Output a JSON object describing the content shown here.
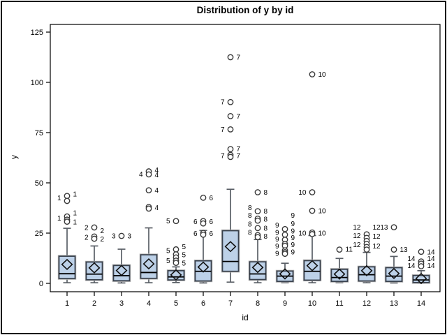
{
  "figure": {
    "title": "Distribution of y by id",
    "y_axis": {
      "label": "y",
      "ticks": [
        "0",
        "25",
        "50",
        "75",
        "100",
        "125"
      ]
    },
    "x_axis": {
      "label": "id",
      "categories": [
        "1",
        "2",
        "3",
        "4",
        "5",
        "6",
        "7",
        "8",
        "9",
        "10",
        "11",
        "12",
        "13",
        "14"
      ]
    }
  },
  "colors": {
    "box_fill": "#bdd1e8",
    "box_stroke": "#39414d",
    "box_halo": "#adadad",
    "whisker": "#5a5f66",
    "median": "#000000",
    "mean_diamond": "#111111",
    "outlier_stroke": "#3a3a3a",
    "outlier_fill": "#ffffff",
    "axis": "#000000",
    "text": "#000000"
  },
  "chart_data": {
    "type": "boxplot",
    "title": "Distribution of y by id",
    "xlabel": "id",
    "ylabel": "y",
    "ylim": [
      -4.5,
      128.5
    ],
    "yticks": [
      0,
      25,
      50,
      75,
      100,
      125
    ],
    "categories": [
      "1",
      "2",
      "3",
      "4",
      "5",
      "6",
      "7",
      "8",
      "9",
      "10",
      "11",
      "12",
      "13",
      "14"
    ],
    "legend": "none",
    "grid": false,
    "series": [
      {
        "id": "1",
        "whisker_low": 0.3,
        "q1": 2.4,
        "median": 4.8,
        "q3": 13.5,
        "whisker_high": 27.4,
        "mean": 9.4,
        "outliers": [
          43.5,
          41.0,
          33.3,
          31.7,
          30.7
        ],
        "label_left_at": [
          42.5,
          32.5
        ],
        "label_right_at": [
          44.5,
          35.0,
          30.5
        ]
      },
      {
        "id": "2",
        "whisker_low": 0.3,
        "q1": 1.8,
        "median": 4.6,
        "q3": 10.6,
        "whisker_high": 18.6,
        "mean": 7.7,
        "outliers": [
          27.8,
          23.3,
          22.2
        ],
        "label_left_at": [
          27.8,
          23.0
        ],
        "label_right_at": [
          26.2,
          22.0
        ]
      },
      {
        "id": "3",
        "whisker_low": 0.2,
        "q1": 1.3,
        "median": 3.8,
        "q3": 8.9,
        "whisker_high": 17.0,
        "mean": 6.4,
        "outliers": [
          23.6
        ],
        "label_left_at": [
          23.6
        ],
        "label_right_at": [
          23.6
        ]
      },
      {
        "id": "4",
        "whisker_low": 0.3,
        "q1": 2.5,
        "median": 5.4,
        "q3": 14.2,
        "whisker_high": 27.6,
        "mean": 9.7,
        "outliers": [
          55.7,
          54.2,
          46.3,
          38.0,
          37.2
        ],
        "label_left_at": [
          54.4
        ],
        "label_right_at": [
          56.5,
          54.0,
          46.3,
          37.6
        ]
      },
      {
        "id": "5",
        "whisker_low": 0.4,
        "q1": 1.7,
        "median": 3.2,
        "q3": 6.3,
        "whisker_high": 8.2,
        "mean": 4.2,
        "outliers": [
          31.0,
          16.9,
          14.4,
          12.9,
          11.3,
          10.2
        ],
        "label_left_at": [
          31.0,
          16.4,
          11.2
        ],
        "label_right_at": [
          18.2,
          14.2,
          10.0
        ]
      },
      {
        "id": "6",
        "whisker_low": 0.2,
        "q1": 1.2,
        "median": 6.0,
        "q3": 11.2,
        "whisker_high": 26.3,
        "mean": 8.1,
        "outliers": [
          42.6,
          31.0,
          29.8,
          25.1,
          24.2
        ],
        "label_left_at": [
          30.8,
          24.8
        ],
        "label_right_at": [
          42.6,
          30.8,
          24.8
        ]
      },
      {
        "id": "7",
        "whisker_low": 0.6,
        "q1": 6.0,
        "median": 10.9,
        "q3": 26.2,
        "whisker_high": 46.8,
        "mean": 18.3,
        "outliers": [
          112.5,
          90.2,
          83.2,
          76.6,
          66.8,
          63.9,
          62.9
        ],
        "label_left_at": [
          90.2,
          76.6,
          63.5
        ],
        "label_right_at": [
          112.5,
          83.2,
          67.0,
          63.5
        ]
      },
      {
        "id": "8",
        "whisker_low": 0.3,
        "q1": 1.9,
        "median": 4.7,
        "q3": 10.7,
        "whisker_high": 21.8,
        "mean": 7.9,
        "outliers": [
          45.3,
          35.9,
          32.2,
          31.2,
          27.5,
          24.0,
          23.0
        ],
        "label_left_at": [
          37.6,
          33.9,
          29.6,
          25.4
        ],
        "label_right_at": [
          45.3,
          35.9,
          32.0,
          27.5,
          23.4
        ]
      },
      {
        "id": "9",
        "whisker_low": 0.3,
        "q1": 1.0,
        "median": 3.6,
        "q3": 6.1,
        "whisker_high": 10.0,
        "mean": 4.7,
        "outliers": [
          27.0,
          24.2,
          21.7,
          19.6,
          18.7,
          16.4,
          15.5,
          14.7
        ],
        "label_left_at": [
          29.0,
          25.4,
          22.0,
          18.5,
          15.0
        ],
        "label_right_at": [
          33.9,
          29.7,
          26.1,
          22.7,
          19.2,
          15.7
        ]
      },
      {
        "id": "10",
        "whisker_low": 0.3,
        "q1": 1.6,
        "median": 6.0,
        "q3": 11.3,
        "whisker_high": 23.8,
        "mean": 8.8,
        "outliers": [
          104.0,
          45.3,
          36.1,
          25.3,
          24.5
        ],
        "label_left_at": [
          45.3,
          25.0
        ],
        "label_right_at": [
          104.0,
          36.1,
          25.0
        ]
      },
      {
        "id": "11",
        "whisker_low": 0.3,
        "q1": 1.0,
        "median": 2.9,
        "q3": 7.0,
        "whisker_high": 12.4,
        "mean": 4.6,
        "outliers": [
          16.8
        ],
        "label_left_at": [],
        "label_right_at": [
          17.0
        ]
      },
      {
        "id": "12",
        "whisker_low": 0.3,
        "q1": 1.2,
        "median": 4.3,
        "q3": 8.2,
        "whisker_high": 15.4,
        "mean": 6.3,
        "outliers": [
          24.4,
          22.6,
          21.1,
          19.6,
          18.1,
          16.8
        ],
        "label_left_at": [
          27.9,
          23.7,
          19.2
        ],
        "label_right_at": [
          27.9,
          23.4,
          18.5
        ]
      },
      {
        "id": "13",
        "whisker_low": 0.2,
        "q1": 1.0,
        "median": 3.6,
        "q3": 7.8,
        "whisker_high": 13.4,
        "mean": 4.9,
        "outliers": [
          27.9,
          16.8
        ],
        "label_left_at": [
          27.9
        ],
        "label_right_at": [
          16.8
        ]
      },
      {
        "id": "14",
        "whisker_low": 0.1,
        "q1": 0.4,
        "median": 1.7,
        "q3": 3.9,
        "whisker_high": 6.3,
        "mean": 2.4,
        "outliers": [
          15.7,
          10.9,
          9.8,
          8.5
        ],
        "label_left_at": [
          12.3,
          8.8
        ],
        "label_right_at": [
          15.7,
          12.3,
          8.8
        ]
      }
    ]
  }
}
